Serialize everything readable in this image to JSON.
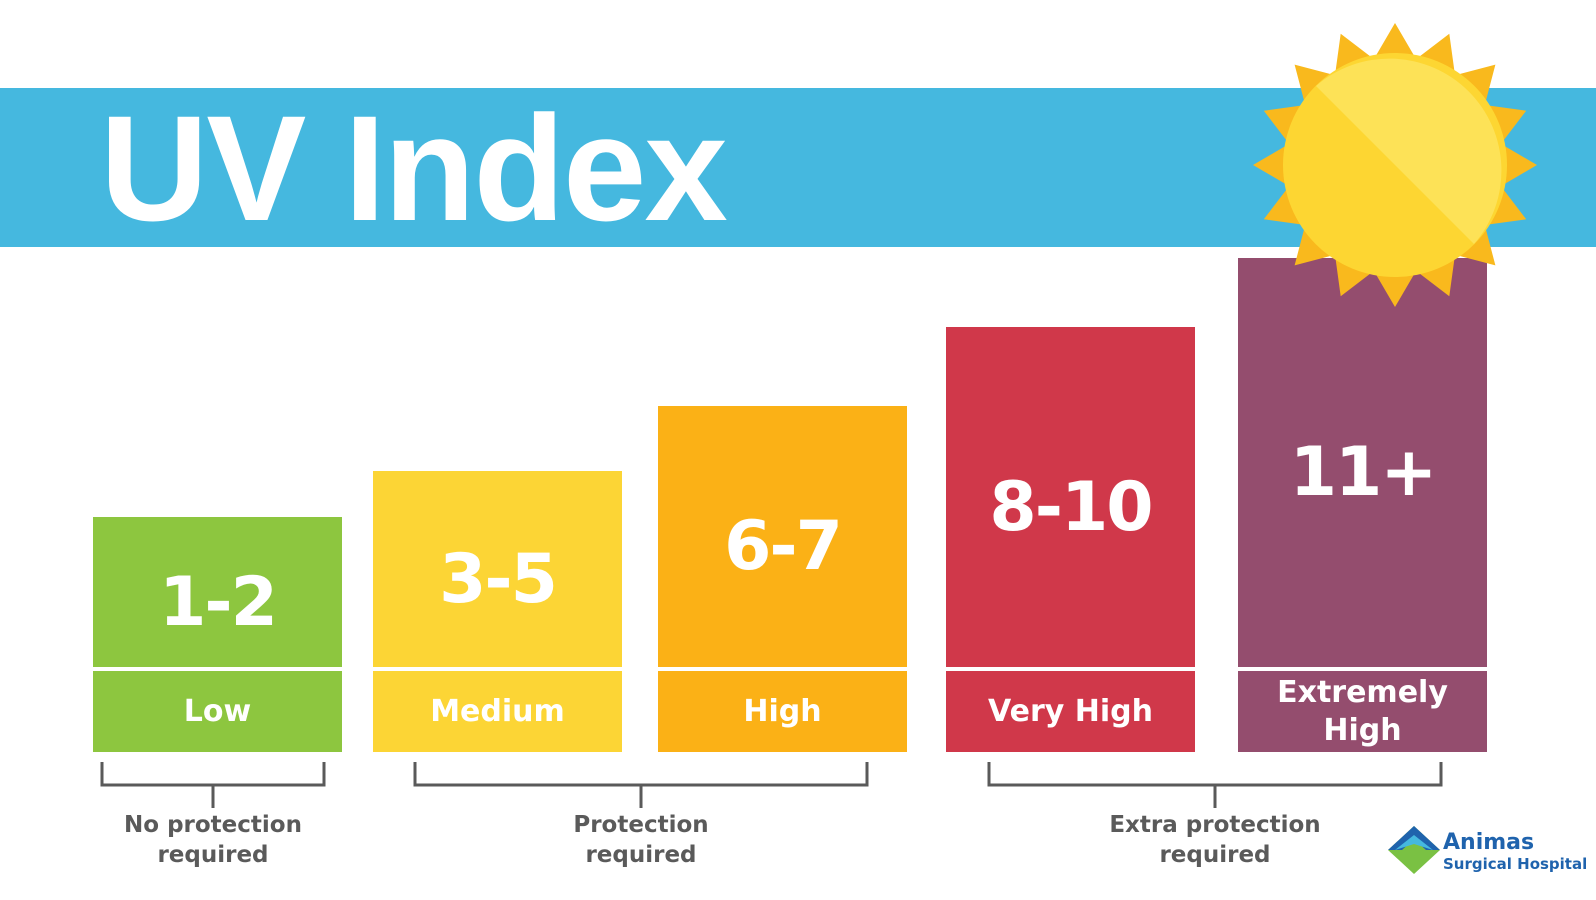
{
  "header": {
    "title": "UV Index"
  },
  "levels": [
    {
      "range": "1-2",
      "label": "Low"
    },
    {
      "range": "3-5",
      "label": "Medium"
    },
    {
      "range": "6-7",
      "label": "High"
    },
    {
      "range": "8-10",
      "label": "Very High"
    },
    {
      "range": "11+",
      "label": "Extremely High"
    }
  ],
  "groups": [
    {
      "label": "No protection required"
    },
    {
      "label": "Protection required"
    },
    {
      "label": "Extra protection required"
    }
  ],
  "logo": {
    "name": "Animas",
    "subtitle": "Surgical Hospital"
  }
}
